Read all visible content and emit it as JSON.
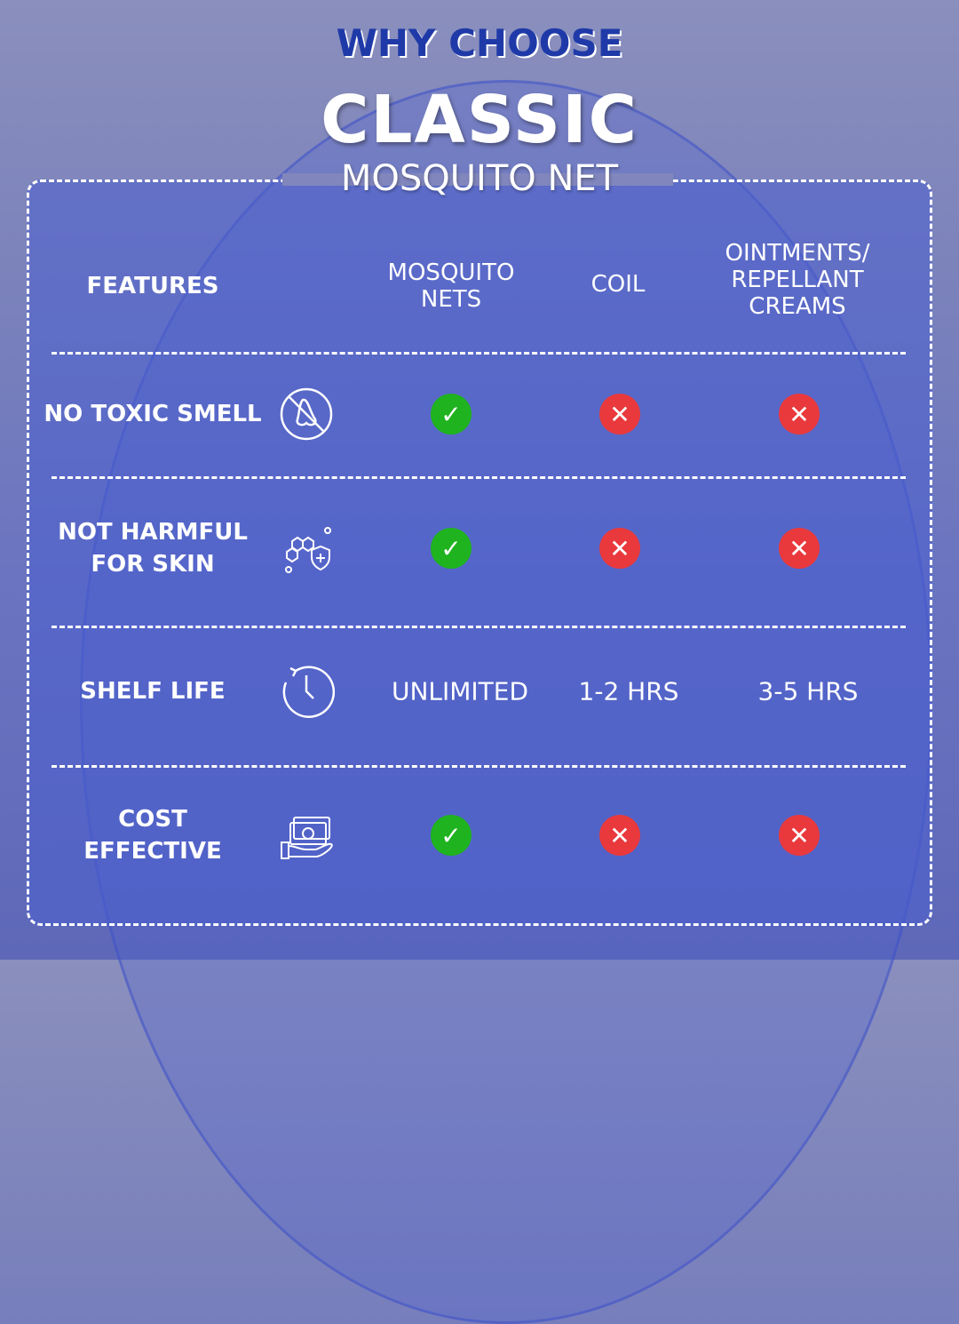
{
  "title": {
    "line1": "WHY CHOOSE",
    "line2": "CLASSIC",
    "line3": "MOSQUITO NET"
  },
  "headers": {
    "features": "FEATURES",
    "nets": "MOSQUITO\nNETS",
    "coil": "COIL",
    "creams": "OINTMENTS/\nREPELLANT\nCREAMS"
  },
  "rows": [
    {
      "feature": "NO TOXIC SMELL",
      "icon": "no-smell-icon",
      "nets": "check",
      "coil": "cross",
      "creams": "cross"
    },
    {
      "feature": "NOT HARMFUL\nFOR SKIN",
      "icon": "skin-shield-icon",
      "nets": "check",
      "coil": "cross",
      "creams": "cross"
    },
    {
      "feature": "SHELF LIFE",
      "icon": "clock-icon",
      "nets": "UNLIMITED",
      "coil": "1-2 HRS",
      "creams": "3-5 HRS"
    },
    {
      "feature": "COST\nEFFECTIVE",
      "icon": "cash-hand-icon",
      "nets": "check",
      "coil": "cross",
      "creams": "cross"
    }
  ],
  "colors": {
    "check": "#1fb31f",
    "cross": "#e9393d",
    "title_blue": "#1f3aa8"
  }
}
